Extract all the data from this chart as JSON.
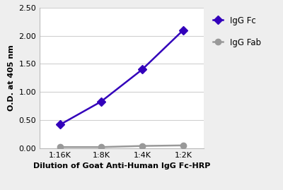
{
  "x_labels": [
    "1:16K",
    "1:8K",
    "1:4K",
    "1:2K"
  ],
  "x_values": [
    1,
    2,
    3,
    4
  ],
  "igg_fc_values": [
    0.42,
    0.83,
    1.4,
    2.1
  ],
  "igg_fab_values": [
    0.02,
    0.02,
    0.04,
    0.05
  ],
  "igg_fc_color": "#3300BB",
  "igg_fab_color": "#999999",
  "ylabel": "O.D. at 405 nm",
  "xlabel": "Dilution of Goat Anti-Human IgG Fc-HRP",
  "ylim": [
    0.0,
    2.5
  ],
  "yticks": [
    0.0,
    0.5,
    1.0,
    1.5,
    2.0,
    2.5
  ],
  "legend_fc_label": "IgG Fc",
  "legend_fab_label": "IgG Fab",
  "background_color": "#eeeeee",
  "plot_bg_color": "#ffffff",
  "grid_color": "#d0d0d0",
  "label_fontsize": 8,
  "tick_fontsize": 8,
  "legend_fontsize": 8.5,
  "line_width": 1.8,
  "marker_size": 6
}
